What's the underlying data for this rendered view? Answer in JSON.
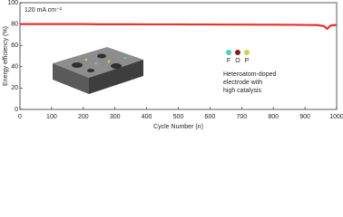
{
  "chart_data": {
    "type": "line",
    "ylabel": "Energy efficiency (%)",
    "xlabel": "Cycle Number (n)",
    "annotations": [
      "120 mA cm⁻²",
      "Heteroatom-doped",
      "electrode with",
      "high catalysis"
    ],
    "elements": [
      "F",
      "O",
      "P"
    ],
    "x": [
      0,
      50,
      100,
      150,
      200,
      250,
      300,
      350,
      400,
      450,
      500,
      550,
      600,
      650,
      700,
      750,
      800,
      850,
      900,
      940,
      960,
      970,
      980,
      990,
      1000
    ],
    "values": [
      80,
      80,
      80,
      80,
      80,
      79.8,
      79.8,
      79.8,
      79.7,
      79.7,
      79.7,
      79.6,
      79.6,
      79.5,
      79.5,
      79.4,
      79.4,
      79.3,
      79.2,
      79,
      78,
      75.5,
      78.5,
      79,
      79
    ],
    "color": "#e0342c",
    "xlim": [
      0,
      1000
    ],
    "xticks": [
      0,
      100,
      200,
      300,
      400,
      500,
      600,
      700,
      800,
      900,
      1000
    ],
    "ylim": [
      0,
      100
    ],
    "yticks": [
      0,
      20,
      40,
      60,
      80,
      100
    ],
    "grid": false
  }
}
